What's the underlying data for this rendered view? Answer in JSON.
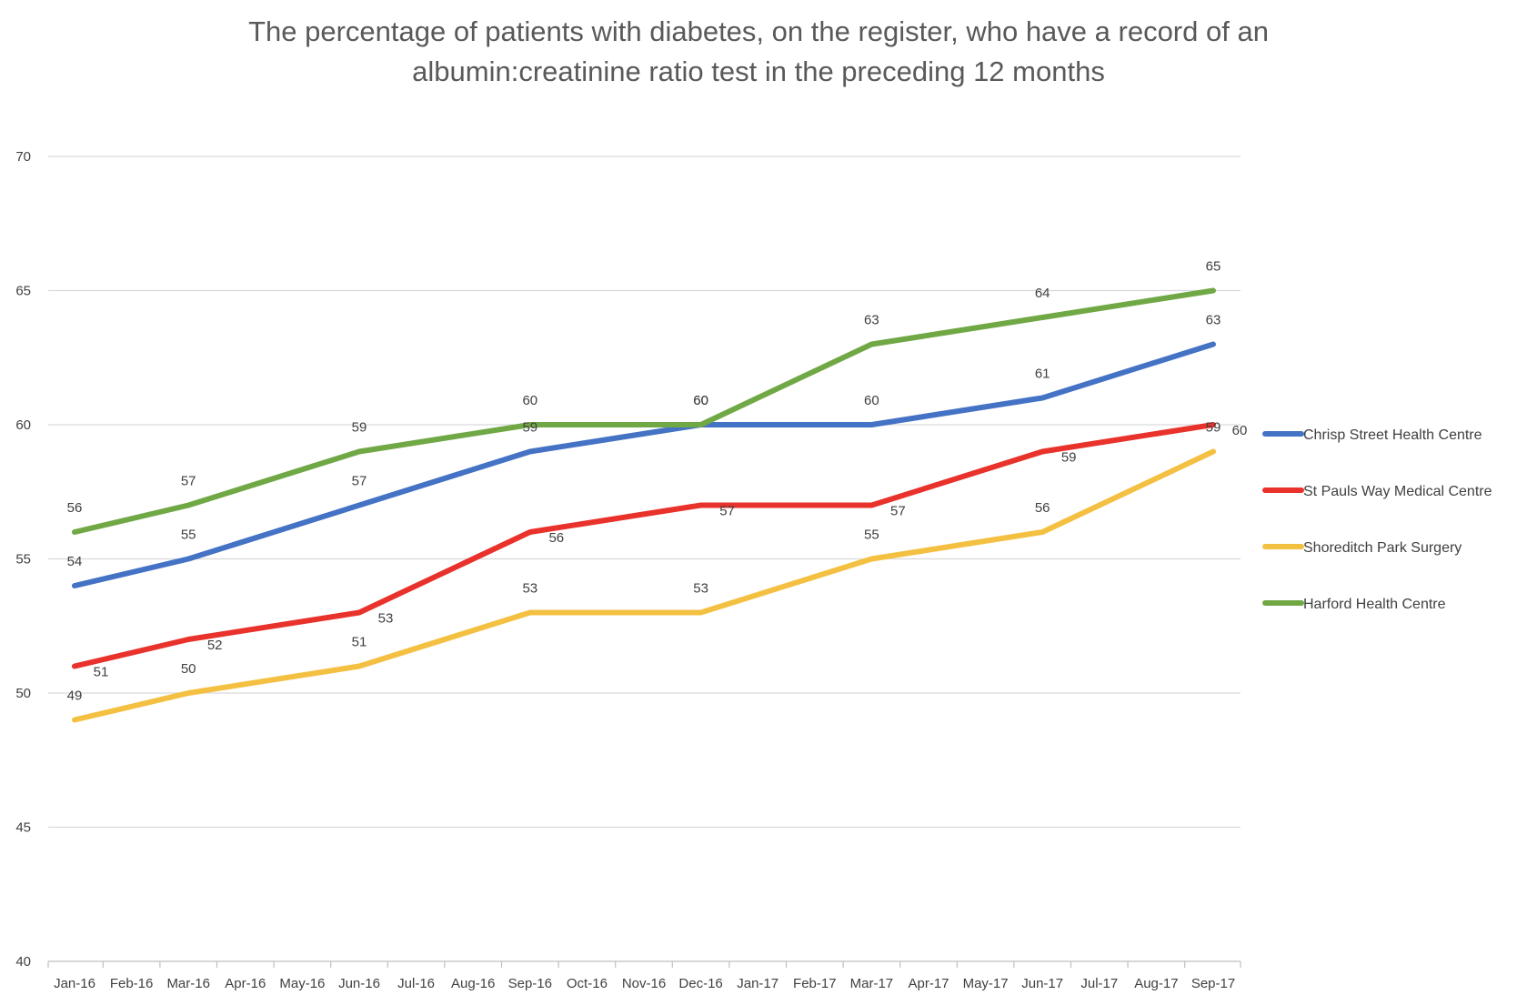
{
  "chart_data": {
    "type": "line",
    "title": "The percentage of patients with diabetes, on the register, who have a record of an albumin:creatinine ratio test in the preceding 12 months",
    "title_lines": [
      "The percentage of patients with diabetes, on the register, who have a record of an",
      "albumin:creatinine ratio test in the preceding 12 months"
    ],
    "xlabel": "",
    "ylabel": "",
    "ylim": [
      40,
      70
    ],
    "yticks": [
      "40",
      "45",
      "50",
      "55",
      "60",
      "65",
      "70"
    ],
    "categories": [
      "Jan-16",
      "Feb-16",
      "Mar-16",
      "Apr-16",
      "May-16",
      "Jun-16",
      "Jul-16",
      "Aug-16",
      "Sep-16",
      "Oct-16",
      "Nov-16",
      "Dec-16",
      "Jan-17",
      "Feb-17",
      "Mar-17",
      "Apr-17",
      "May-17",
      "Jun-17",
      "Jul-17",
      "Aug-17",
      "Sep-17"
    ],
    "grid": true,
    "legend_position": "right",
    "series": [
      {
        "name": "Chrisp Street Health Centre",
        "color": "#4472C4",
        "points": [
          {
            "x": "Jan-16",
            "y": 54
          },
          {
            "x": "Mar-16",
            "y": 55
          },
          {
            "x": "Jun-16",
            "y": 57
          },
          {
            "x": "Sep-16",
            "y": 59
          },
          {
            "x": "Dec-16",
            "y": 60
          },
          {
            "x": "Mar-17",
            "y": 60
          },
          {
            "x": "Jun-17",
            "y": 61
          },
          {
            "x": "Sep-17",
            "y": 63
          }
        ],
        "labels": [
          "54",
          "55",
          "57",
          "59",
          "60",
          "60",
          "61",
          "63"
        ]
      },
      {
        "name": "St Pauls Way Medical Centre",
        "color": "#E8322B",
        "points": [
          {
            "x": "Jan-16",
            "y": 51
          },
          {
            "x": "Mar-16",
            "y": 52
          },
          {
            "x": "Jun-16",
            "y": 53
          },
          {
            "x": "Sep-16",
            "y": 56
          },
          {
            "x": "Dec-16",
            "y": 57
          },
          {
            "x": "Mar-17",
            "y": 57
          },
          {
            "x": "Jun-17",
            "y": 59
          },
          {
            "x": "Sep-17",
            "y": 60
          }
        ],
        "labels": [
          "51",
          "52",
          "53",
          "56",
          "57",
          "57",
          "59",
          "60"
        ]
      },
      {
        "name": "Shoreditch Park Surgery",
        "color": "#F4C042",
        "points": [
          {
            "x": "Jan-16",
            "y": 49
          },
          {
            "x": "Mar-16",
            "y": 50
          },
          {
            "x": "Jun-16",
            "y": 51
          },
          {
            "x": "Sep-16",
            "y": 53
          },
          {
            "x": "Dec-16",
            "y": 53
          },
          {
            "x": "Mar-17",
            "y": 55
          },
          {
            "x": "Jun-17",
            "y": 56
          },
          {
            "x": "Sep-17",
            "y": 59
          }
        ],
        "labels": [
          "49",
          "50",
          "51",
          "53",
          "53",
          "55",
          "56",
          "59"
        ]
      },
      {
        "name": "Harford Health Centre",
        "color": "#70A845",
        "points": [
          {
            "x": "Jan-16",
            "y": 56
          },
          {
            "x": "Mar-16",
            "y": 57
          },
          {
            "x": "Jun-16",
            "y": 59
          },
          {
            "x": "Sep-16",
            "y": 60
          },
          {
            "x": "Dec-16",
            "y": 60
          },
          {
            "x": "Mar-17",
            "y": 63
          },
          {
            "x": "Jun-17",
            "y": 64
          },
          {
            "x": "Sep-17",
            "y": 65
          }
        ],
        "labels": [
          "56",
          "57",
          "59",
          "60",
          "60",
          "63",
          "64",
          "65"
        ]
      }
    ]
  }
}
